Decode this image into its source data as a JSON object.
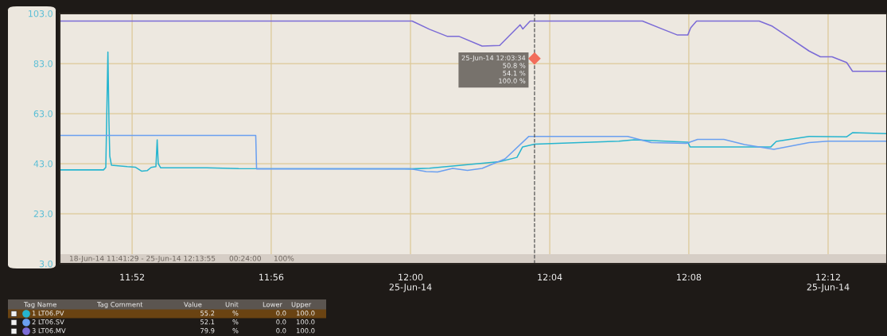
{
  "chart_data": {
    "type": "line",
    "xlim": [
      11.832,
      12.2282
    ],
    "xticks": [
      {
        "value": 11.8667,
        "label": "11:52"
      },
      {
        "value": 11.9333,
        "label": "11:56"
      },
      {
        "value": 12.0,
        "label": "12:00\n25-Jun-14"
      },
      {
        "value": 12.0667,
        "label": "12:04"
      },
      {
        "value": 12.1333,
        "label": "12:08"
      },
      {
        "value": 12.2,
        "label": "12:12\n25-Jun-14"
      }
    ],
    "ylim": [
      3,
      103
    ],
    "yticks": [
      {
        "value": 3,
        "label": "3.0"
      },
      {
        "value": 23,
        "label": "23.0"
      },
      {
        "value": 43,
        "label": "43.0"
      },
      {
        "value": 63,
        "label": "63.0"
      },
      {
        "value": 83,
        "label": "83.0"
      },
      {
        "value": 103,
        "label": "103.0"
      }
    ],
    "grid": true,
    "legend": "bottom",
    "line_style": "solid",
    "series": [
      {
        "name": "1 LT06.PV",
        "color": "#26b5cf",
        "x": [
          11.832,
          11.853,
          11.8541,
          11.8545,
          11.8551,
          11.8556,
          11.856,
          11.8568,
          11.8644,
          11.8682,
          11.8712,
          11.8739,
          11.8758,
          11.8781,
          11.8787,
          11.8792,
          11.8804,
          11.9025,
          11.9177,
          12.0,
          12.0091,
          12.0427,
          12.051,
          12.0537,
          12.0594,
          12.0701,
          12.0998,
          12.107,
          12.1328,
          12.1339,
          12.1726,
          12.1752,
          12.1909,
          12.2088,
          12.2118,
          12.2282
        ],
        "values": [
          40.5,
          40.5,
          41.5,
          60,
          87.6,
          60,
          46,
          42.4,
          41.8,
          41.6,
          40.0,
          40.2,
          41.5,
          41.8,
          52.5,
          43,
          41.3,
          41.3,
          41.0,
          40.9,
          41.2,
          43.8,
          45.5,
          49.7,
          50.8,
          51.1,
          52.0,
          52.5,
          51.6,
          49.7,
          49.7,
          51.9,
          53.9,
          53.7,
          55.4,
          55.0
        ]
      },
      {
        "name": "2 LT06.SV",
        "color": "#6a9ff0",
        "x": [
          11.832,
          11.9259,
          11.9263,
          12.0,
          12.0075,
          12.013,
          12.0202,
          12.0273,
          12.0343,
          12.0453,
          12.0567,
          12.104,
          12.1153,
          12.1321,
          12.1375,
          12.1501,
          12.16,
          12.174,
          12.1909,
          12.1998,
          12.2282
        ],
        "values": [
          54.3,
          54.3,
          40.9,
          40.9,
          39.8,
          39.7,
          41.1,
          40.3,
          41.1,
          44.9,
          53.9,
          53.9,
          51.4,
          51.1,
          52.7,
          52.7,
          50.6,
          48.7,
          51.4,
          52.0,
          52.0
        ]
      },
      {
        "name": "3 LT06.MV",
        "color": "#7b6bd6",
        "x": [
          11.832,
          12.0008,
          12.0091,
          12.0175,
          12.0231,
          12.0343,
          12.0427,
          12.0525,
          12.0538,
          12.0573,
          12.1111,
          12.1209,
          12.1279,
          12.1328,
          12.1342,
          12.137,
          12.167,
          12.1733,
          12.1796,
          12.1909,
          12.1963,
          12.2019,
          12.2089,
          12.2117,
          12.2282
        ],
        "values": [
          100.0,
          100.0,
          96.7,
          93.9,
          93.9,
          90.0,
          90.2,
          98.5,
          96.8,
          100.0,
          100.0,
          96.7,
          94.4,
          94.4,
          97.3,
          100.0,
          100.0,
          97.9,
          94.4,
          88.0,
          85.7,
          85.7,
          83.4,
          79.9,
          79.9
        ]
      }
    ],
    "ref_lines": [
      {
        "axis": "x",
        "value": 12.0594,
        "color": "#555555",
        "line_style": "dashed"
      }
    ],
    "bands": [
      {
        "axis": "y",
        "from": 3,
        "to": 6.8,
        "color": "#d6cec6"
      }
    ],
    "annotations": [
      "18-Jun-14 11:41:29 - 25-Jun-14 12:13:55",
      "00:24:00",
      "100%",
      "Tag Name",
      "Tag Comment",
      "Value",
      "Unit",
      "Lower",
      "Upper",
      "55.2",
      "%",
      "0.0",
      "100.0",
      "52.1",
      "%",
      "0.0",
      "100.0",
      "79.9",
      "%",
      "0.0",
      "100.0",
      {
        "text": "25-Jun-14 12:03:34\n50.8 %\n54.1 %\n100.0 %",
        "x": 12.0594,
        "y": 85
      }
    ]
  }
}
